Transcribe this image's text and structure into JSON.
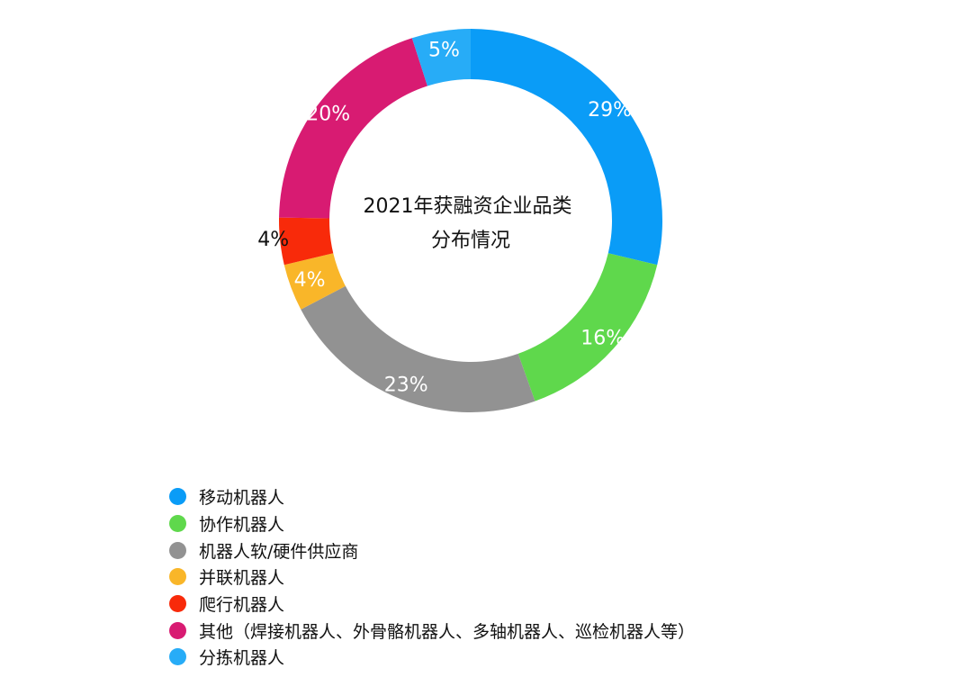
{
  "chart_data": {
    "type": "pie",
    "variant": "donut",
    "title": "2021年获融资企业品类分布情况",
    "title_lines": [
      "2021年获融资企业品类",
      "分布情况"
    ],
    "unit": "%",
    "start": "12 o'clock",
    "direction": "clockwise",
    "legend_position": "bottom-left",
    "slices": [
      {
        "name": "移动机器人",
        "value": 29,
        "label": "29%",
        "color": "#0A9CF7",
        "label_color": "#ffffff"
      },
      {
        "name": "协作机器人",
        "value": 16,
        "label": "16%",
        "color": "#5FD84C",
        "label_color": "#ffffff"
      },
      {
        "name": "机器人软/硬件供应商",
        "value": 23,
        "label": "23%",
        "color": "#929292",
        "label_color": "#ffffff"
      },
      {
        "name": "并联机器人",
        "value": 4,
        "label": "4%",
        "color": "#F9B629",
        "label_color": "#ffffff"
      },
      {
        "name": "爬行机器人",
        "value": 4,
        "label": "4%",
        "color": "#F82A0A",
        "label_color": "#111111"
      },
      {
        "name": "其他（焊接机器人、外骨骼机器人、多轴机器人、巡检机器人等）",
        "value": 20,
        "label": "20%",
        "color": "#D81B72",
        "label_color": "#ffffff"
      },
      {
        "name": "分拣机器人",
        "value": 5,
        "label": "5%",
        "color": "#27ACF7",
        "label_color": "#ffffff"
      }
    ]
  }
}
